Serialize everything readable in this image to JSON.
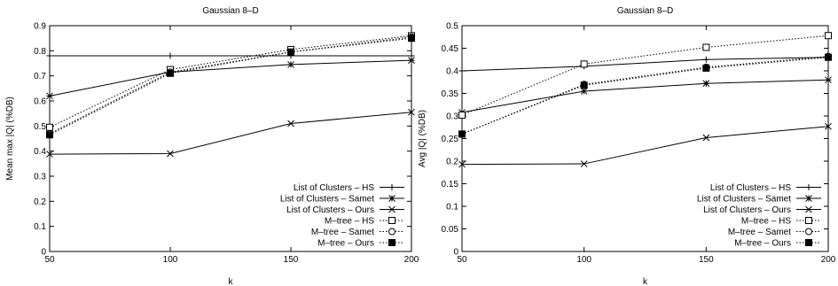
{
  "chart_data": [
    {
      "type": "line",
      "title": "Gaussian 8–D",
      "xlabel": "k",
      "ylabel": "Mean max |Q| (%DB)",
      "x": [
        50,
        100,
        150,
        200
      ],
      "xticks": [
        "50",
        "100",
        "150",
        "200"
      ],
      "xlim": [
        50,
        200
      ],
      "ylim": [
        0,
        0.9
      ],
      "yticks": [
        "0",
        "0.1",
        "0.2",
        "0.3",
        "0.4",
        "0.5",
        "0.6",
        "0.7",
        "0.8",
        "0.9"
      ],
      "grid": false,
      "legend_position": "bottom-right",
      "series": [
        {
          "name": "List of Clusters – HS",
          "marker": "plus",
          "dash": "solid",
          "values": [
            0.78,
            0.78,
            0.78,
            0.78
          ]
        },
        {
          "name": "List of Clusters – Samet",
          "marker": "star",
          "dash": "solid",
          "values": [
            0.62,
            0.715,
            0.745,
            0.762
          ]
        },
        {
          "name": "List of Clusters – Ours",
          "marker": "cross",
          "dash": "solid",
          "values": [
            0.388,
            0.39,
            0.51,
            0.555
          ]
        },
        {
          "name": "M–tree – HS",
          "marker": "square-open",
          "dash": "dotted",
          "values": [
            0.495,
            0.725,
            0.805,
            0.86
          ]
        },
        {
          "name": "M–tree – Samet",
          "marker": "circle-open",
          "dash": "dotted",
          "values": [
            0.47,
            0.715,
            0.795,
            0.855
          ]
        },
        {
          "name": "M–tree – Ours",
          "marker": "square-filled",
          "dash": "dotted",
          "values": [
            0.465,
            0.71,
            0.795,
            0.85
          ]
        }
      ]
    },
    {
      "type": "line",
      "title": "Gaussian 8–D",
      "xlabel": "k",
      "ylabel": "Avg |Q| (%DB)",
      "x": [
        50,
        100,
        150,
        200
      ],
      "xticks": [
        "50",
        "100",
        "150",
        "200"
      ],
      "xlim": [
        50,
        200
      ],
      "ylim": [
        0,
        0.5
      ],
      "yticks": [
        "0",
        "0.05",
        "0.1",
        "0.15",
        "0.2",
        "0.25",
        "0.3",
        "0.35",
        "0.4",
        "0.45",
        "0.5"
      ],
      "grid": false,
      "legend_position": "bottom-right",
      "series": [
        {
          "name": "List of Clusters – HS",
          "marker": "plus",
          "dash": "solid",
          "values": [
            0.4,
            0.41,
            0.425,
            0.43
          ]
        },
        {
          "name": "List of Clusters – Samet",
          "marker": "star",
          "dash": "solid",
          "values": [
            0.308,
            0.355,
            0.372,
            0.38
          ]
        },
        {
          "name": "List of Clusters – Ours",
          "marker": "cross",
          "dash": "solid",
          "values": [
            0.193,
            0.194,
            0.252,
            0.277
          ]
        },
        {
          "name": "M–tree – HS",
          "marker": "square-open",
          "dash": "dotted",
          "values": [
            0.302,
            0.415,
            0.452,
            0.478
          ]
        },
        {
          "name": "M–tree – Samet",
          "marker": "circle-open",
          "dash": "dotted",
          "values": [
            0.26,
            0.37,
            0.408,
            0.432
          ]
        },
        {
          "name": "M–tree – Ours",
          "marker": "square-filled",
          "dash": "dotted",
          "values": [
            0.26,
            0.368,
            0.406,
            0.43
          ]
        }
      ]
    }
  ]
}
